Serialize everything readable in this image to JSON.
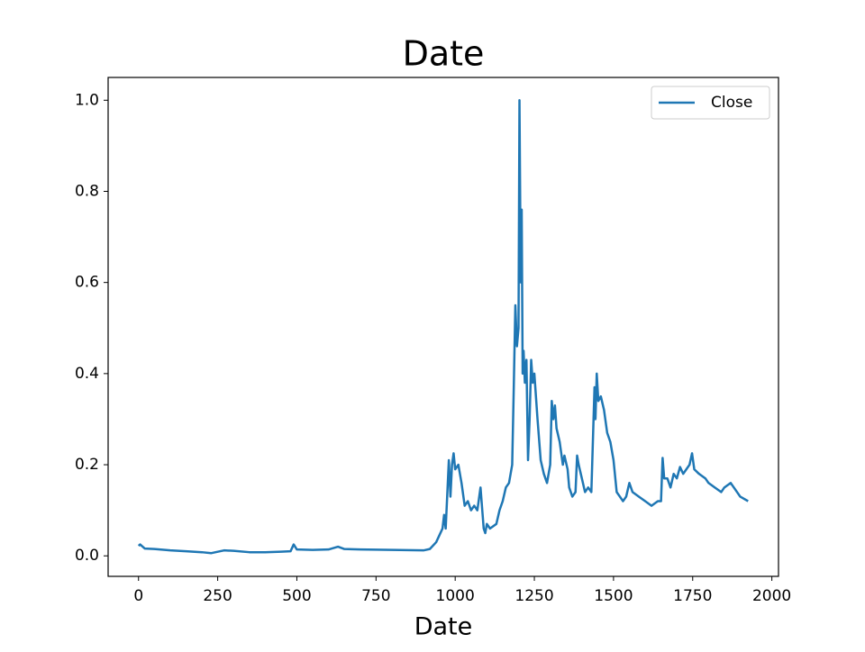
{
  "chart_data": {
    "type": "line",
    "title": "Date",
    "x_label": "Date",
    "x": [
      0,
      5,
      20,
      50,
      100,
      150,
      200,
      230,
      270,
      300,
      350,
      400,
      450,
      480,
      490,
      500,
      550,
      600,
      630,
      650,
      700,
      800,
      900,
      920,
      940,
      960,
      965,
      970,
      980,
      985,
      990,
      995,
      1000,
      1010,
      1020,
      1030,
      1040,
      1050,
      1060,
      1070,
      1080,
      1090,
      1095,
      1100,
      1110,
      1130,
      1140,
      1150,
      1160,
      1170,
      1180,
      1185,
      1190,
      1195,
      1200,
      1203,
      1207,
      1210,
      1213,
      1216,
      1220,
      1225,
      1230,
      1235,
      1240,
      1245,
      1250,
      1260,
      1270,
      1280,
      1290,
      1300,
      1305,
      1310,
      1315,
      1320,
      1330,
      1340,
      1345,
      1355,
      1360,
      1370,
      1380,
      1385,
      1390,
      1400,
      1410,
      1420,
      1430,
      1440,
      1443,
      1447,
      1452,
      1460,
      1470,
      1480,
      1490,
      1500,
      1510,
      1520,
      1530,
      1540,
      1550,
      1560,
      1580,
      1600,
      1620,
      1640,
      1650,
      1655,
      1660,
      1670,
      1680,
      1690,
      1700,
      1710,
      1720,
      1730,
      1740,
      1748,
      1755,
      1770,
      1790,
      1800,
      1820,
      1840,
      1850,
      1870,
      1880,
      1900,
      1925
    ],
    "series": [
      {
        "name": "Close",
        "color": "#1f77b4",
        "values": [
          0.022,
          0.025,
          0.016,
          0.015,
          0.012,
          0.01,
          0.008,
          0.006,
          0.012,
          0.011,
          0.008,
          0.008,
          0.009,
          0.01,
          0.025,
          0.014,
          0.013,
          0.014,
          0.02,
          0.015,
          0.014,
          0.013,
          0.012,
          0.015,
          0.03,
          0.06,
          0.09,
          0.06,
          0.21,
          0.13,
          0.2,
          0.225,
          0.19,
          0.2,
          0.16,
          0.11,
          0.12,
          0.1,
          0.11,
          0.1,
          0.15,
          0.06,
          0.05,
          0.07,
          0.06,
          0.07,
          0.1,
          0.12,
          0.15,
          0.16,
          0.2,
          0.37,
          0.55,
          0.46,
          0.5,
          1.0,
          0.6,
          0.76,
          0.4,
          0.45,
          0.38,
          0.43,
          0.21,
          0.3,
          0.43,
          0.38,
          0.4,
          0.3,
          0.21,
          0.18,
          0.16,
          0.2,
          0.34,
          0.3,
          0.33,
          0.28,
          0.25,
          0.2,
          0.22,
          0.19,
          0.15,
          0.13,
          0.14,
          0.22,
          0.2,
          0.17,
          0.14,
          0.15,
          0.14,
          0.37,
          0.3,
          0.4,
          0.34,
          0.35,
          0.32,
          0.27,
          0.25,
          0.21,
          0.14,
          0.13,
          0.12,
          0.13,
          0.16,
          0.14,
          0.13,
          0.12,
          0.11,
          0.12,
          0.12,
          0.215,
          0.17,
          0.17,
          0.15,
          0.18,
          0.17,
          0.195,
          0.18,
          0.19,
          0.2,
          0.225,
          0.19,
          0.18,
          0.17,
          0.16,
          0.15,
          0.14,
          0.15,
          0.16,
          0.15,
          0.13,
          0.12
        ]
      }
    ],
    "xlim": [
      -96,
      2021
    ],
    "ylim": [
      -0.045,
      1.05
    ],
    "xticks": [
      0,
      250,
      500,
      750,
      1000,
      1250,
      1500,
      1750,
      2000
    ],
    "yticks": [
      {
        "value": 0,
        "label": "0.0"
      },
      {
        "value": 0.2,
        "label": "0.2"
      },
      {
        "value": 0.4,
        "label": "0.4"
      },
      {
        "value": 0.6,
        "label": "0.6"
      },
      {
        "value": 0.8,
        "label": "0.8"
      },
      {
        "value": 1,
        "label": "1.0"
      }
    ],
    "legend": "upper right"
  }
}
